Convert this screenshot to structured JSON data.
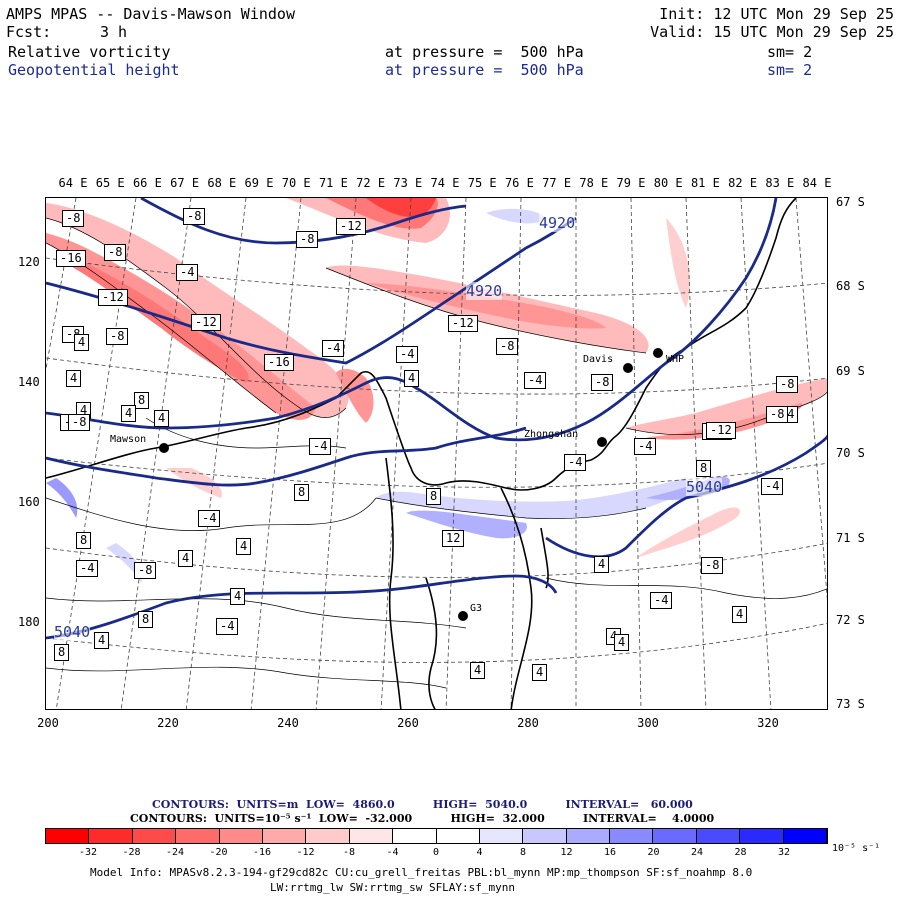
{
  "header": {
    "title": "AMPS MPAS -- Davis-Mawson Window",
    "init": "Init: 12 UTC Mon 29 Sep 25",
    "fcst_label": "Fcst:",
    "fcst_value": "3 h",
    "valid": "Valid: 15 UTC Mon 29 Sep 25",
    "field1": "Relative vorticity",
    "field1_level": "at pressure =  500 hPa",
    "field1_sm": "sm= 2",
    "field2": "Geopotential height",
    "field2_level": "at pressure =  500 hPa",
    "field2_sm": "sm= 2"
  },
  "map": {
    "lon_labels": [
      "64 E",
      "65 E",
      "66 E",
      "67 E",
      "68 E",
      "69 E",
      "70 E",
      "71 E",
      "72 E",
      "73 E",
      "74 E",
      "75 E",
      "76 E",
      "77 E",
      "78 E",
      "79 E",
      "80 E",
      "81 E",
      "82 E",
      "83 E",
      "84 E"
    ],
    "lat_labels": [
      "67 S",
      "68 S",
      "69 S",
      "70 S",
      "71 S",
      "72 S",
      "73 S"
    ],
    "y_ticks": [
      "120",
      "140",
      "160",
      "180"
    ],
    "x_ticks": [
      "200",
      "220",
      "240",
      "260",
      "280",
      "300",
      "320"
    ],
    "stations": [
      {
        "name": "Mawson"
      },
      {
        "name": "Davis"
      },
      {
        "name": "WHP"
      },
      {
        "name": "Zhongshan"
      },
      {
        "name": "G3"
      }
    ],
    "vort_labels": [
      "-8",
      "-8",
      "-8",
      "-12",
      "-16",
      "-8",
      "-4",
      "-12",
      "-12",
      "-8",
      "-8",
      "-16",
      "4",
      "-12",
      "-8",
      "-4",
      "4",
      "-4",
      "-4",
      "-8",
      "-8",
      "-4",
      "-12",
      "4",
      "8",
      "-4",
      "-4",
      "4",
      "-4",
      "-4",
      "-12",
      "4",
      "8",
      "-4",
      "8",
      "8",
      "-4",
      "4",
      "8",
      "12",
      "-8",
      "4",
      "4",
      "-8",
      "-4",
      "8",
      "4",
      "4",
      "4",
      "4",
      "4",
      "4",
      "4",
      "-8",
      "-8",
      "4",
      "-4",
      "-4",
      "8"
    ],
    "height_labels": [
      "4920",
      "4920",
      "5040",
      "5040"
    ]
  },
  "legend": {
    "contours1": "CONTOURS:  UNITS=m  LOW=  4860.0          HIGH=  5040.0          INTERVAL=   60.000",
    "contours2": "CONTOURS:  UNITS=10⁻⁵ s⁻¹  LOW=  -32.000          HIGH=  32.000          INTERVAL=    4.0000"
  },
  "colorbar": {
    "ticks": [
      "-32",
      "-28",
      "-24",
      "-20",
      "-16",
      "-12",
      "-8",
      "-4",
      "0",
      "4",
      "8",
      "12",
      "16",
      "20",
      "24",
      "28",
      "32"
    ],
    "units": "10⁻⁵ s⁻¹",
    "colors": [
      "#ff0000",
      "#ff2a2a",
      "#ff4a4a",
      "#ff6a6a",
      "#ff8a8a",
      "#ffaaaa",
      "#ffcaca",
      "#ffe6e6",
      "#ffffff",
      "#ffffff",
      "#e6e6ff",
      "#c8c8ff",
      "#aaaaff",
      "#8a8aff",
      "#6a6aff",
      "#4a4aff",
      "#2a2aff",
      "#0000ff"
    ]
  },
  "footer": {
    "line1": "Model Info: MPASv8.2.3-194-gf29cd82c CU:cu_grell_freitas PBL:bl_mynn MP:mp_thompson SF:sf_noahmp 8.0",
    "line2": "LW:rrtmg_lw SW:rrtmg_sw SFLAY:sf_mynn"
  }
}
